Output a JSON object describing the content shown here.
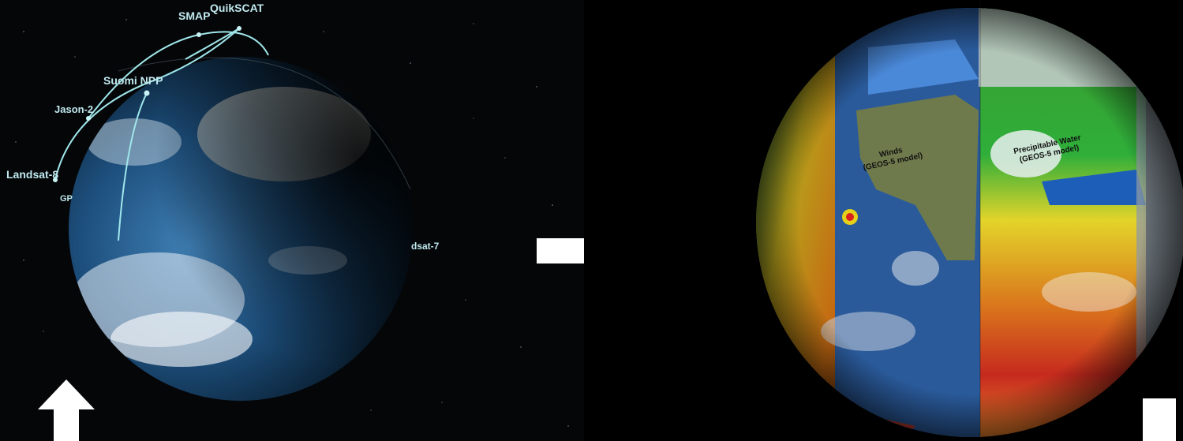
{
  "left_panel": {
    "satellites": {
      "smap": "SMAP",
      "quikscat": "QuikSCAT",
      "suomi_npp": "Suomi NPP",
      "jason_2": "Jason-2",
      "landsat_8": "Landsat-8",
      "gp_partial": "GP",
      "landsat_7_partial": "dsat-7"
    }
  },
  "right_panel": {
    "winds_label": "Winds\n(GEOS-5 model)",
    "precip_label": "Precipitable Water\n(GEOS-5 model)"
  },
  "arrows": {
    "up_arrow": "up-arrow-icon",
    "right_arrow": "right-arrow-icon"
  },
  "colors": {
    "orbit": "#9fe6ea",
    "ocean": "#1f4d7a",
    "arrow": "#ffffff"
  }
}
